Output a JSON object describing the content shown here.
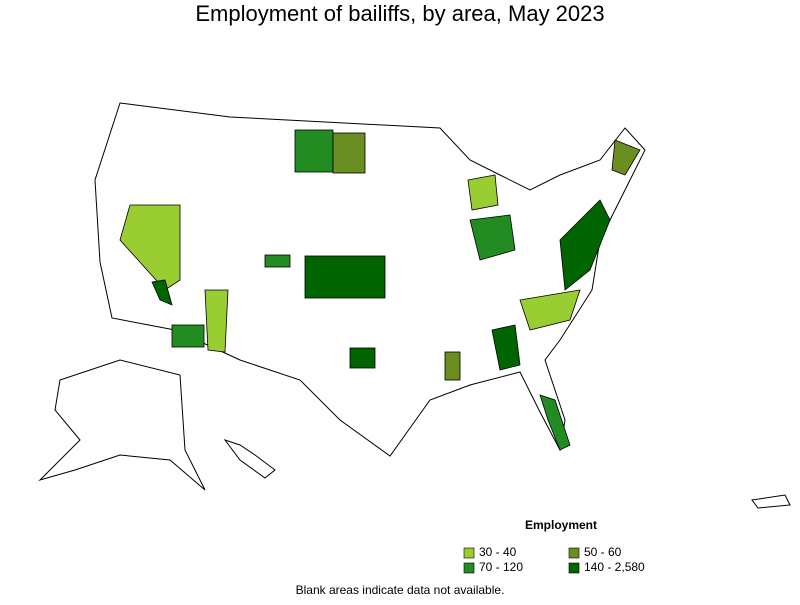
{
  "title": "Employment of bailiffs, by area, May 2023",
  "legend": {
    "title": "Employment",
    "items": [
      {
        "label": "30 - 40",
        "color": "#9acd32"
      },
      {
        "label": "50 - 60",
        "color": "#6b8e23"
      },
      {
        "label": "70 - 120",
        "color": "#228b22"
      },
      {
        "label": "140 - 2,580",
        "color": "#006400"
      }
    ]
  },
  "note": "Blank areas indicate data not available."
}
